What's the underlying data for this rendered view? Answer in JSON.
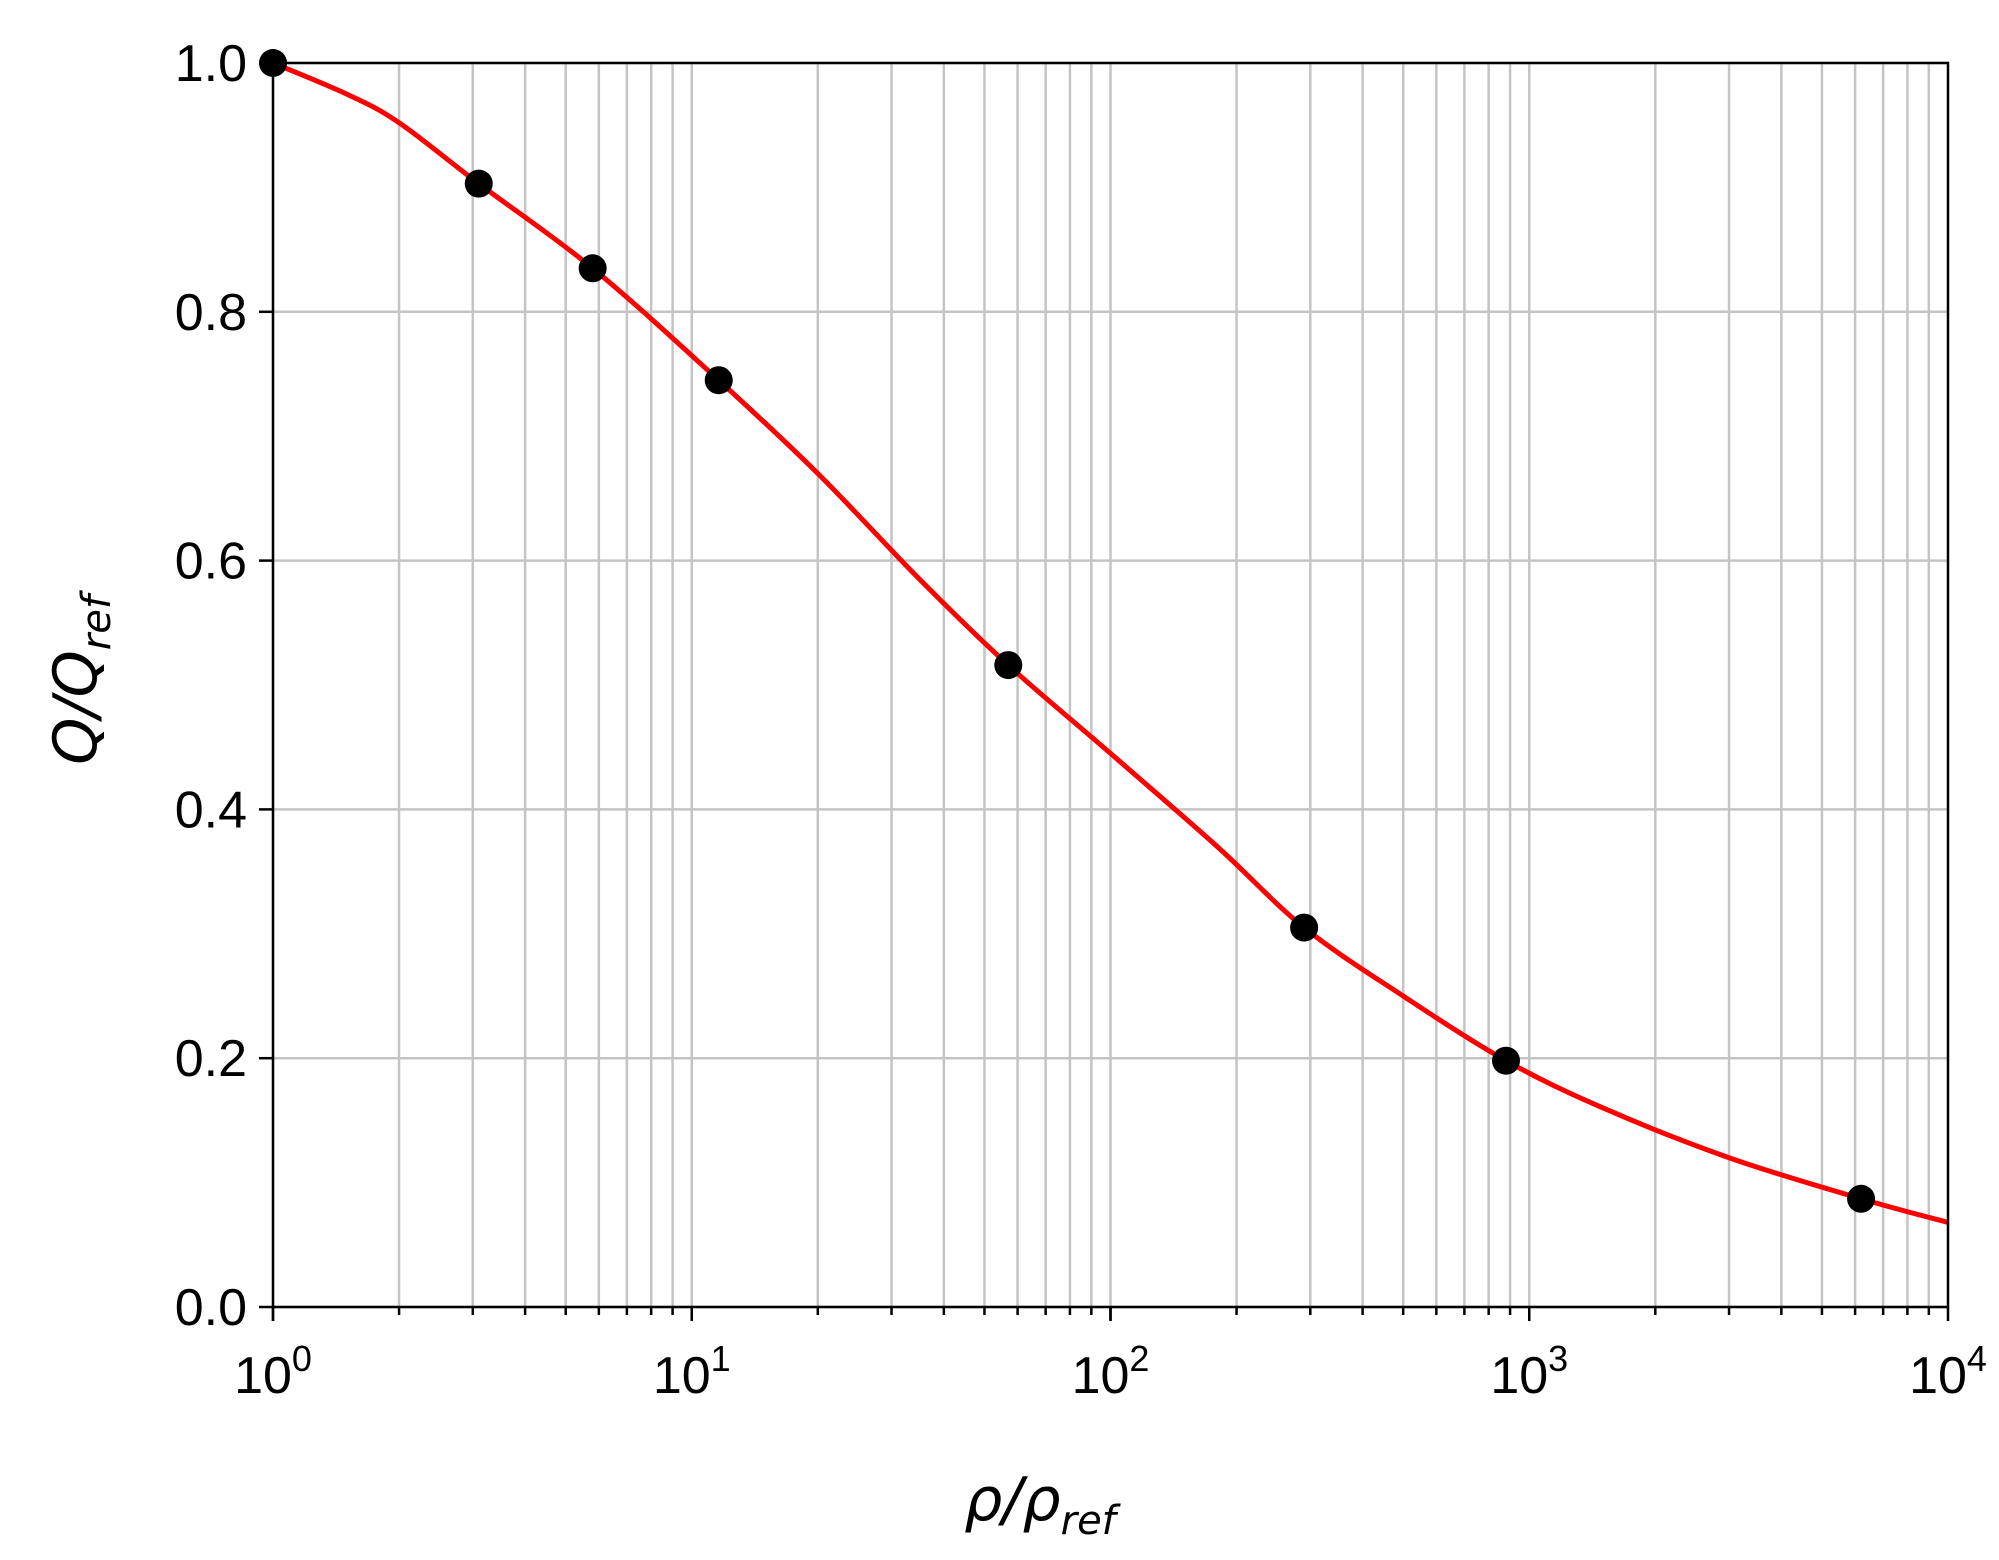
{
  "chart_data": {
    "type": "scatter",
    "xlabel": {
      "main": "ρ/ρ",
      "sub": "ref"
    },
    "ylabel": {
      "main": "Q/Q",
      "sub": "ref"
    },
    "xscale": "log",
    "xlim": [
      1,
      10000
    ],
    "ylim": [
      0.0,
      1.0
    ],
    "grid": true,
    "x_ticks": [
      {
        "base": "10",
        "exp": "0",
        "value": 1
      },
      {
        "base": "10",
        "exp": "1",
        "value": 10
      },
      {
        "base": "10",
        "exp": "2",
        "value": 100
      },
      {
        "base": "10",
        "exp": "3",
        "value": 1000
      },
      {
        "base": "10",
        "exp": "4",
        "value": 10000
      }
    ],
    "y_ticks": [
      "0.0",
      "0.2",
      "0.4",
      "0.6",
      "0.8",
      "1.0"
    ],
    "series": [
      {
        "kind": "points",
        "color": "#000000",
        "x": [
          1,
          3.1,
          5.8,
          11.6,
          57,
          290,
          880,
          6200
        ],
        "y": [
          1.0,
          0.903,
          0.835,
          0.745,
          0.516,
          0.305,
          0.198,
          0.087
        ]
      },
      {
        "kind": "fit-curve",
        "color": "#ff0000",
        "x": [
          1,
          1.5,
          2,
          3.1,
          5.8,
          11.6,
          20,
          35,
          57,
          100,
          180,
          290,
          500,
          880,
          1500,
          3000,
          6200,
          10000
        ],
        "y": [
          1.0,
          0.975,
          0.952,
          0.903,
          0.835,
          0.745,
          0.67,
          0.585,
          0.516,
          0.445,
          0.37,
          0.305,
          0.25,
          0.198,
          0.16,
          0.12,
          0.087,
          0.068
        ]
      }
    ]
  }
}
